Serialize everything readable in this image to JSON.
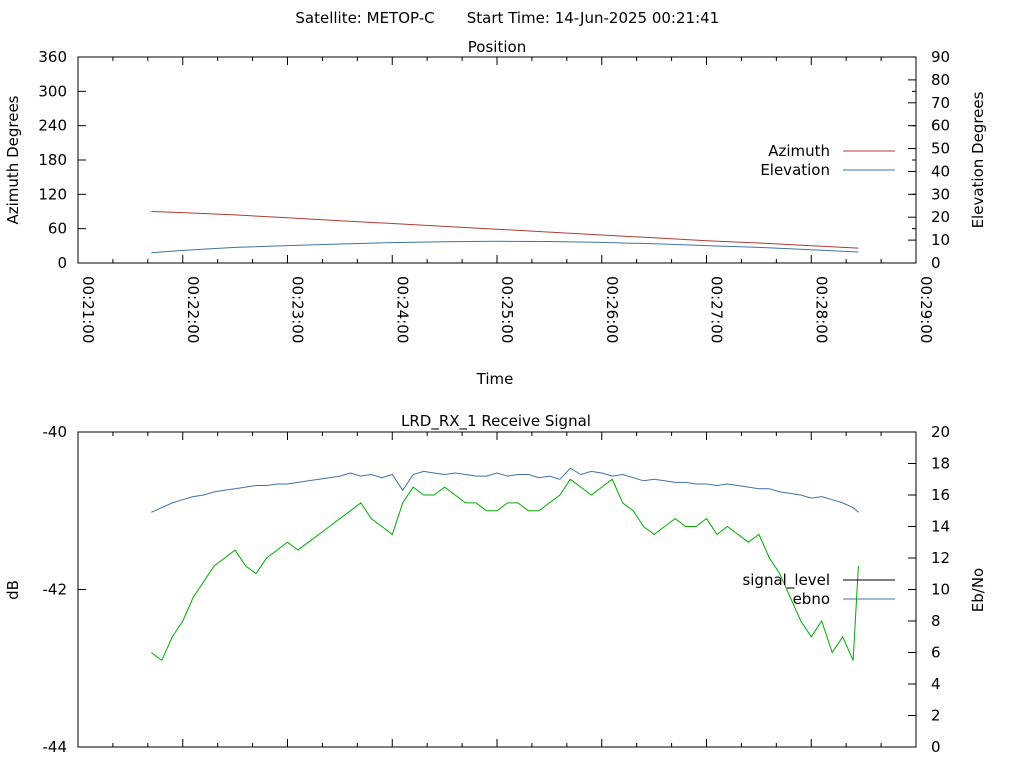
{
  "header": {
    "satellite_label": "Satellite: METOP-C",
    "start_time_label": "Start Time: 14-Jun-2025 00:21:41"
  },
  "chart_data": [
    {
      "type": "line",
      "title": "Position",
      "xlabel": "Time",
      "ylabel_left": "Azimuth Degrees",
      "ylabel_right": "Elevation Degrees",
      "x_ticks": [
        "00:21:00",
        "00:22:00",
        "00:23:00",
        "00:24:00",
        "00:25:00",
        "00:26:00",
        "00:27:00",
        "00:28:00",
        "00:29:00"
      ],
      "xlim_minutes": [
        21,
        29
      ],
      "ylim_left": [
        0,
        360
      ],
      "y_ticks_left": [
        "0",
        "60",
        "120",
        "180",
        "240",
        "300",
        "360"
      ],
      "ylim_right": [
        0,
        90
      ],
      "y_ticks_right": [
        "0",
        "10",
        "20",
        "30",
        "40",
        "50",
        "60",
        "70",
        "80",
        "90"
      ],
      "legend_position": "right",
      "grid": false,
      "series": [
        {
          "name": "Azimuth",
          "axis": "left",
          "color": "#b03a34",
          "x_minutes": [
            21.7,
            22.0,
            22.5,
            23.0,
            23.5,
            24.0,
            24.5,
            25.0,
            25.5,
            26.0,
            26.5,
            27.0,
            27.5,
            28.0,
            28.45
          ],
          "values": [
            90,
            88,
            84,
            79,
            74,
            69,
            64,
            59,
            54,
            49,
            44,
            39,
            35,
            30,
            26
          ]
        },
        {
          "name": "Elevation",
          "axis": "right",
          "color": "#3f73a6",
          "x_minutes": [
            21.7,
            22.0,
            22.5,
            23.0,
            23.5,
            24.0,
            24.5,
            25.0,
            25.5,
            26.0,
            26.5,
            27.0,
            27.5,
            28.0,
            28.45
          ],
          "values": [
            4.5,
            5.5,
            6.8,
            7.6,
            8.3,
            8.9,
            9.3,
            9.5,
            9.4,
            9.0,
            8.4,
            7.6,
            6.8,
            5.8,
            4.8
          ]
        }
      ]
    },
    {
      "type": "line",
      "title": "LRD_RX_1 Receive Signal",
      "ylabel_left": "dB",
      "ylabel_right": "Eb/No",
      "xlim_minutes": [
        21,
        29
      ],
      "ylim_left": [
        -44,
        -40
      ],
      "y_ticks_left": [
        "-44",
        "-42",
        "-40"
      ],
      "ylim_right": [
        0,
        20
      ],
      "y_ticks_right": [
        "0",
        "2",
        "4",
        "6",
        "8",
        "10",
        "12",
        "14",
        "16",
        "18",
        "20"
      ],
      "legend_position": "right",
      "grid": false,
      "series": [
        {
          "name": "signal_level",
          "axis": "left",
          "color": "#00aa00",
          "legend_color": "#000000",
          "x_minutes": [
            21.7,
            21.8,
            21.9,
            22.0,
            22.1,
            22.2,
            22.3,
            22.4,
            22.5,
            22.6,
            22.7,
            22.8,
            22.9,
            23.0,
            23.1,
            23.2,
            23.3,
            23.4,
            23.5,
            23.6,
            23.7,
            23.8,
            23.9,
            24.0,
            24.1,
            24.2,
            24.3,
            24.4,
            24.5,
            24.6,
            24.7,
            24.8,
            24.9,
            25.0,
            25.1,
            25.2,
            25.3,
            25.4,
            25.5,
            25.6,
            25.7,
            25.8,
            25.9,
            26.0,
            26.1,
            26.2,
            26.3,
            26.4,
            26.5,
            26.6,
            26.7,
            26.8,
            26.9,
            27.0,
            27.1,
            27.2,
            27.3,
            27.4,
            27.5,
            27.6,
            27.7,
            27.8,
            27.9,
            28.0,
            28.1,
            28.2,
            28.3,
            28.4,
            28.45
          ],
          "values": [
            -42.8,
            -42.9,
            -42.6,
            -42.4,
            -42.1,
            -41.9,
            -41.7,
            -41.6,
            -41.5,
            -41.7,
            -41.8,
            -41.6,
            -41.5,
            -41.4,
            -41.5,
            -41.4,
            -41.3,
            -41.2,
            -41.1,
            -41.0,
            -40.9,
            -41.1,
            -41.2,
            -41.3,
            -40.9,
            -40.7,
            -40.8,
            -40.8,
            -40.7,
            -40.8,
            -40.9,
            -40.9,
            -41.0,
            -41.0,
            -40.9,
            -40.9,
            -41.0,
            -41.0,
            -40.9,
            -40.8,
            -40.6,
            -40.7,
            -40.8,
            -40.7,
            -40.6,
            -40.9,
            -41.0,
            -41.2,
            -41.3,
            -41.2,
            -41.1,
            -41.2,
            -41.2,
            -41.1,
            -41.3,
            -41.2,
            -41.3,
            -41.4,
            -41.3,
            -41.6,
            -41.8,
            -42.1,
            -42.4,
            -42.6,
            -42.4,
            -42.8,
            -42.6,
            -42.9,
            -41.7
          ]
        },
        {
          "name": "ebno",
          "axis": "right",
          "color": "#3f73a6",
          "legend_color": "#3f73a6",
          "x_minutes": [
            21.7,
            21.8,
            21.9,
            22.0,
            22.1,
            22.2,
            22.3,
            22.4,
            22.5,
            22.6,
            22.7,
            22.8,
            22.9,
            23.0,
            23.1,
            23.2,
            23.3,
            23.4,
            23.5,
            23.6,
            23.7,
            23.8,
            23.9,
            24.0,
            24.1,
            24.2,
            24.3,
            24.4,
            24.5,
            24.6,
            24.7,
            24.8,
            24.9,
            25.0,
            25.1,
            25.2,
            25.3,
            25.4,
            25.5,
            25.6,
            25.7,
            25.8,
            25.9,
            26.0,
            26.1,
            26.2,
            26.3,
            26.4,
            26.5,
            26.6,
            26.7,
            26.8,
            26.9,
            27.0,
            27.1,
            27.2,
            27.3,
            27.4,
            27.5,
            27.6,
            27.7,
            27.8,
            27.9,
            28.0,
            28.1,
            28.2,
            28.3,
            28.4,
            28.45
          ],
          "values": [
            14.9,
            15.2,
            15.5,
            15.7,
            15.9,
            16.0,
            16.2,
            16.3,
            16.4,
            16.5,
            16.6,
            16.6,
            16.7,
            16.7,
            16.8,
            16.9,
            17.0,
            17.1,
            17.2,
            17.4,
            17.2,
            17.3,
            17.1,
            17.3,
            16.3,
            17.3,
            17.5,
            17.4,
            17.3,
            17.4,
            17.3,
            17.2,
            17.2,
            17.4,
            17.2,
            17.3,
            17.3,
            17.1,
            17.2,
            17.0,
            17.7,
            17.3,
            17.5,
            17.4,
            17.2,
            17.3,
            17.1,
            16.9,
            17.0,
            16.9,
            16.8,
            16.8,
            16.7,
            16.7,
            16.6,
            16.7,
            16.6,
            16.5,
            16.4,
            16.4,
            16.2,
            16.1,
            16.0,
            15.8,
            15.9,
            15.7,
            15.5,
            15.2,
            14.9
          ]
        }
      ]
    }
  ]
}
